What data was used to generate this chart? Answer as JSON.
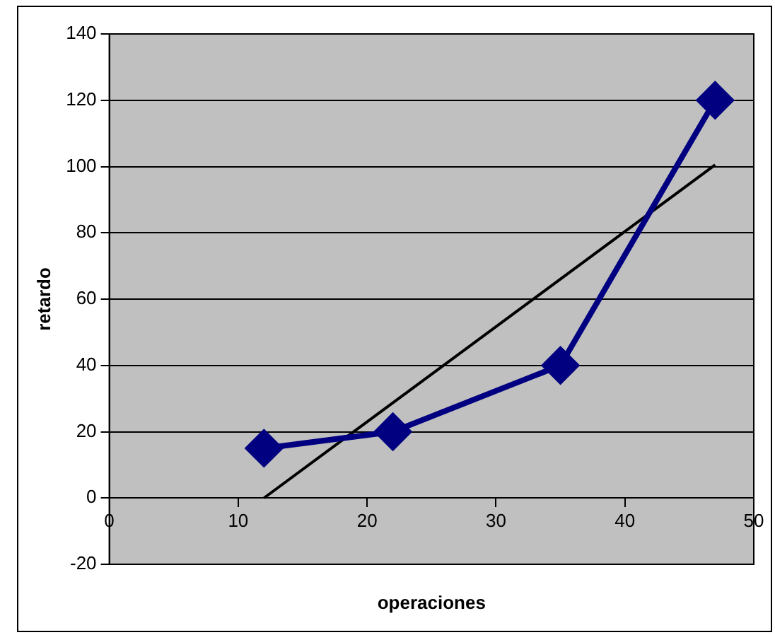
{
  "chart_data": {
    "type": "line",
    "xlabel": "operaciones",
    "ylabel": "retardo",
    "xlim": [
      0,
      50
    ],
    "xticks": [
      0,
      10,
      20,
      30,
      40,
      50
    ],
    "ylim": [
      -20,
      140
    ],
    "yticks": [
      -20,
      0,
      20,
      40,
      60,
      80,
      100,
      120,
      140
    ],
    "grid": "y",
    "legend": false,
    "marker": "diamond",
    "series": [
      {
        "color": "#000080",
        "x": [
          12,
          22,
          35,
          47
        ],
        "values": [
          15,
          20,
          40,
          120
        ]
      },
      {
        "color": "#000000",
        "marker": "none",
        "x": [
          12,
          47
        ],
        "values": [
          0,
          100.5
        ]
      }
    ]
  }
}
